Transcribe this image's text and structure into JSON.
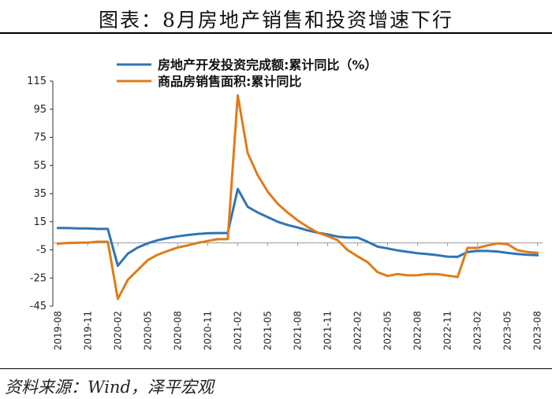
{
  "title": "图表：8月房地产销售和投资增速下行",
  "source": "资料来源：Wind，泽平宏观",
  "chart_data": {
    "type": "line",
    "categories": [
      "2019-08",
      "2019-09",
      "2019-10",
      "2019-11",
      "2019-12",
      "2020-01",
      "2020-02",
      "2020-03",
      "2020-04",
      "2020-05",
      "2020-06",
      "2020-07",
      "2020-08",
      "2020-09",
      "2020-10",
      "2020-11",
      "2020-12",
      "2021-01",
      "2021-02",
      "2021-03",
      "2021-04",
      "2021-05",
      "2021-06",
      "2021-07",
      "2021-08",
      "2021-09",
      "2021-10",
      "2021-11",
      "2021-12",
      "2022-01",
      "2022-02",
      "2022-03",
      "2022-04",
      "2022-05",
      "2022-06",
      "2022-07",
      "2022-08",
      "2022-09",
      "2022-10",
      "2022-11",
      "2022-12",
      "2023-01",
      "2023-02",
      "2023-03",
      "2023-04",
      "2023-05",
      "2023-06",
      "2023-07",
      "2023-08"
    ],
    "tick_labels": [
      "2019-08",
      "2019-11",
      "2020-02",
      "2020-05",
      "2020-08",
      "2020-11",
      "2021-02",
      "2021-05",
      "2021-08",
      "2021-11",
      "2022-02",
      "2022-05",
      "2022-08",
      "2022-11",
      "2023-02",
      "2023-05",
      "2023-08"
    ],
    "ylim": [
      -45,
      115
    ],
    "yticks": [
      115,
      95,
      75,
      55,
      35,
      15,
      -5,
      -25,
      -45
    ],
    "series": [
      {
        "name": "房地产开发投资完成额:累计同比（%）",
        "color": "#2E75B6",
        "values": [
          10.5,
          10.5,
          10.3,
          10.2,
          9.9,
          9.9,
          -16.3,
          -7.7,
          -3.3,
          -0.3,
          1.9,
          3.4,
          4.6,
          5.6,
          6.3,
          6.8,
          7.0,
          7.0,
          38.3,
          25.6,
          21.6,
          18.3,
          15.0,
          12.7,
          10.9,
          8.8,
          7.2,
          6.0,
          4.4,
          3.7,
          3.7,
          0.7,
          -2.7,
          -4.0,
          -5.4,
          -6.4,
          -7.4,
          -8.0,
          -8.8,
          -9.8,
          -10.0,
          -6.5,
          -5.7,
          -5.8,
          -6.2,
          -7.2,
          -7.9,
          -8.5,
          -8.8
        ]
      },
      {
        "name": "商品房销售面积:累计同比",
        "color": "#E07B1A",
        "values": [
          -0.6,
          -0.1,
          0.1,
          0.2,
          0.8,
          0.8,
          -39.9,
          -26.3,
          -19.3,
          -12.3,
          -8.4,
          -5.8,
          -3.3,
          -1.8,
          0.0,
          1.3,
          2.6,
          2.6,
          104.9,
          63.8,
          48.1,
          36.4,
          27.7,
          21.5,
          15.9,
          11.3,
          7.3,
          4.8,
          1.9,
          -5.2,
          -9.6,
          -13.8,
          -20.9,
          -23.6,
          -22.2,
          -23.1,
          -23.0,
          -22.2,
          -22.3,
          -23.3,
          -24.3,
          -3.6,
          -3.6,
          -1.8,
          -0.4,
          -0.9,
          -5.3,
          -6.5,
          -7.1
        ]
      }
    ]
  }
}
